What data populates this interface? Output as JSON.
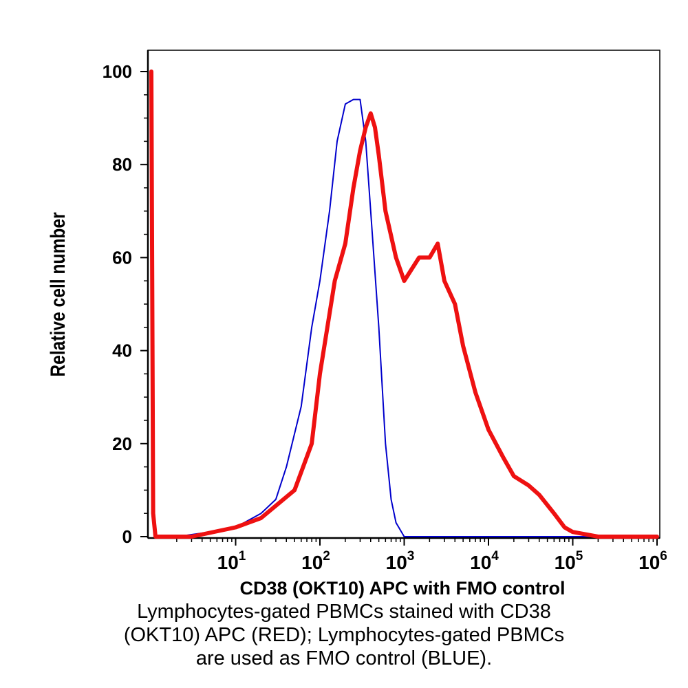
{
  "chart_data": {
    "type": "line",
    "title": "",
    "xlabel": "CD38 (OKT10) APC with FMO control",
    "ylabel": "Relative cell number",
    "xscale": "log",
    "xlim": [
      1,
      1000000
    ],
    "ylim": [
      0,
      100
    ],
    "y_ticks": [
      "0",
      "20",
      "40",
      "60",
      "80",
      "100"
    ],
    "x_ticks": [
      {
        "base": "10",
        "exp": "1",
        "value": 10
      },
      {
        "base": "10",
        "exp": "2",
        "value": 100
      },
      {
        "base": "10",
        "exp": "3",
        "value": 1000
      },
      {
        "base": "10",
        "exp": "4",
        "value": 10000
      },
      {
        "base": "10",
        "exp": "5",
        "value": 100000
      },
      {
        "base": "10",
        "exp": "6",
        "value": 1000000
      }
    ],
    "grid": false,
    "legend": "none",
    "series": [
      {
        "color": "#0000cc",
        "linewidth": "thin",
        "points": [
          [
            1,
            100
          ],
          [
            1.05,
            5
          ],
          [
            1.12,
            0
          ],
          [
            2,
            0
          ],
          [
            5,
            1
          ],
          [
            10,
            2
          ],
          [
            20,
            5
          ],
          [
            30,
            8
          ],
          [
            40,
            15
          ],
          [
            60,
            28
          ],
          [
            80,
            45
          ],
          [
            100,
            55
          ],
          [
            130,
            70
          ],
          [
            160,
            85
          ],
          [
            200,
            93
          ],
          [
            250,
            94
          ],
          [
            300,
            94
          ],
          [
            350,
            85
          ],
          [
            400,
            70
          ],
          [
            500,
            45
          ],
          [
            600,
            20
          ],
          [
            700,
            8
          ],
          [
            800,
            3
          ],
          [
            1000,
            0
          ],
          [
            2000,
            0
          ],
          [
            10000,
            0
          ],
          [
            100000,
            0
          ],
          [
            1000000,
            0
          ]
        ]
      },
      {
        "color": "#ee1111",
        "linewidth": "thick",
        "points": [
          [
            1,
            100
          ],
          [
            1.05,
            5
          ],
          [
            1.12,
            0
          ],
          [
            3,
            0
          ],
          [
            10,
            2
          ],
          [
            20,
            4
          ],
          [
            50,
            10
          ],
          [
            80,
            20
          ],
          [
            100,
            35
          ],
          [
            150,
            55
          ],
          [
            200,
            63
          ],
          [
            250,
            75
          ],
          [
            300,
            83
          ],
          [
            350,
            88
          ],
          [
            400,
            91
          ],
          [
            450,
            88
          ],
          [
            500,
            82
          ],
          [
            600,
            70
          ],
          [
            800,
            60
          ],
          [
            1000,
            55
          ],
          [
            1500,
            60
          ],
          [
            2000,
            60
          ],
          [
            2500,
            63
          ],
          [
            3000,
            55
          ],
          [
            4000,
            50
          ],
          [
            5000,
            41
          ],
          [
            7000,
            31
          ],
          [
            10000,
            23
          ],
          [
            15000,
            17
          ],
          [
            20000,
            13
          ],
          [
            30000,
            11
          ],
          [
            40000,
            9
          ],
          [
            60000,
            5
          ],
          [
            80000,
            2
          ],
          [
            100000,
            1
          ],
          [
            200000,
            0
          ],
          [
            1000000,
            0
          ]
        ]
      }
    ]
  },
  "caption": {
    "line1": "Lymphocytes-gated PBMCs stained with CD38",
    "line2": "(OKT10) APC (RED); Lymphocytes-gated PBMCs",
    "line3": "are used as FMO control (BLUE)."
  }
}
